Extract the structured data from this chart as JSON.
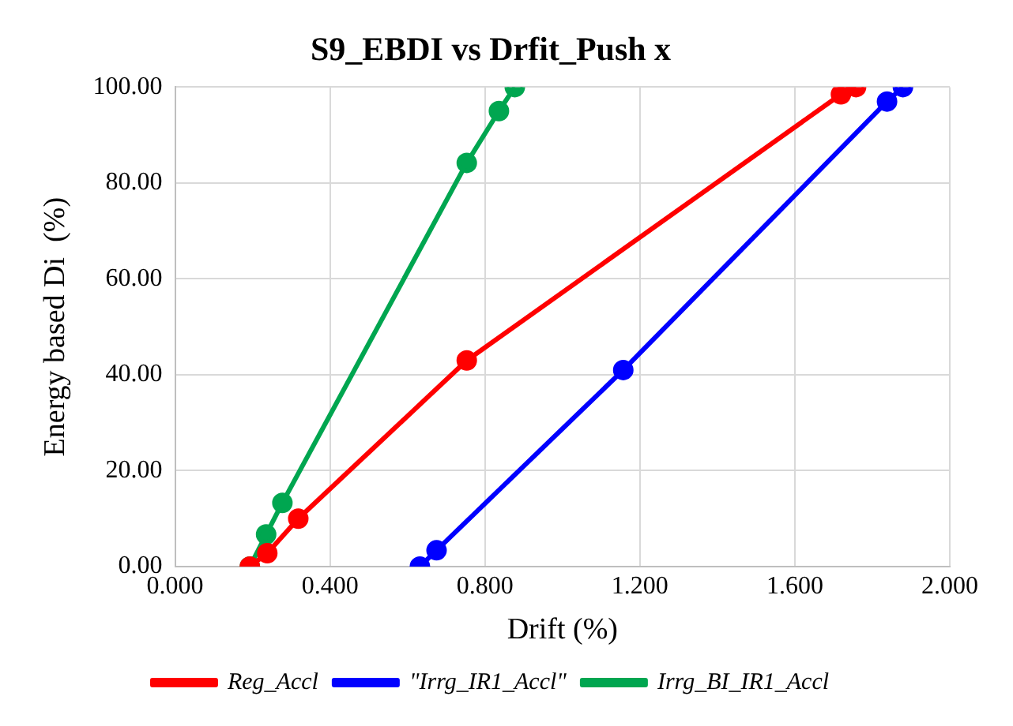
{
  "chart_data": {
    "type": "line",
    "title": "S9_EBDI vs Drfit_Push x",
    "xlabel": "Drift (%)",
    "ylabel": "Energy based Di  (%)",
    "series": [
      {
        "name": "Reg_Accl",
        "color": "#ff0000",
        "x": [
          0.193,
          0.238,
          0.318,
          0.753,
          1.719,
          1.758
        ],
        "values": [
          0,
          2.8,
          10,
          43,
          98.5,
          100
        ]
      },
      {
        "name": "\"Irrg_IR1_Accl\"",
        "color": "#0000ff",
        "x": [
          0.632,
          0.675,
          1.157,
          1.838,
          1.879
        ],
        "values": [
          0,
          3.4,
          41,
          97,
          100
        ]
      },
      {
        "name": "Irrg_BI_IR1_Accl",
        "color": "#00a650",
        "x": [
          0.193,
          0.235,
          0.277,
          0.753,
          0.836,
          0.877
        ],
        "values": [
          0,
          6.7,
          13.3,
          84.2,
          95,
          100
        ]
      }
    ],
    "xlim": [
      0,
      2
    ],
    "xticks": [
      {
        "value": 0,
        "label": "0.000"
      },
      {
        "value": 0.4,
        "label": "0.400"
      },
      {
        "value": 0.8,
        "label": "0.800"
      },
      {
        "value": 1.2,
        "label": "1.200"
      },
      {
        "value": 1.6,
        "label": "1.600"
      },
      {
        "value": 2,
        "label": "2.000"
      }
    ],
    "ylim": [
      0,
      100
    ],
    "yticks": [
      {
        "value": 0,
        "label": "0.00"
      },
      {
        "value": 20,
        "label": "20.00"
      },
      {
        "value": 40,
        "label": "40.00"
      },
      {
        "value": 60,
        "label": "60.00"
      },
      {
        "value": 80,
        "label": "80.00"
      },
      {
        "value": 100,
        "label": "100.00"
      }
    ],
    "grid": true,
    "legend": "bottom",
    "marker": "circle",
    "line_style": "solid"
  }
}
